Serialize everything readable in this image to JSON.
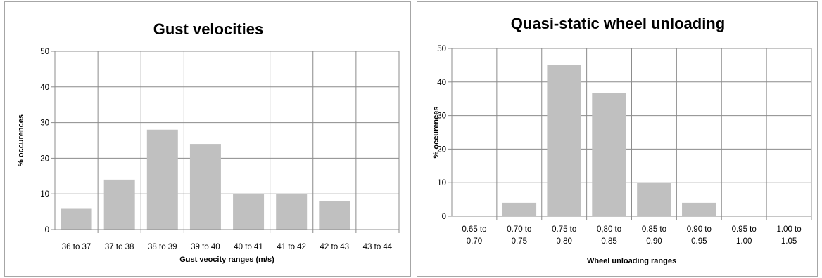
{
  "chart_data": [
    {
      "type": "bar",
      "title": "Gust velocities",
      "xlabel": "Gust veocity ranges (m/s)",
      "ylabel": "% occurences",
      "categories": [
        [
          "36 to 37"
        ],
        [
          "37 to 38"
        ],
        [
          "38 to 39"
        ],
        [
          "39 to 40"
        ],
        [
          "40 to 41"
        ],
        [
          "41 to 42"
        ],
        [
          "42 to 43"
        ],
        [
          "43 to 44"
        ]
      ],
      "values": [
        6,
        14,
        28,
        24,
        10,
        10,
        8,
        0
      ],
      "ylim": [
        0,
        50
      ],
      "yticks": [
        0,
        10,
        20,
        30,
        40,
        50
      ],
      "grid": true,
      "bar_color": "#c0c0c0"
    },
    {
      "type": "bar",
      "title": "Quasi-static wheel unloading",
      "xlabel": "Wheel unloading ranges",
      "ylabel": "% occurences",
      "categories": [
        [
          "0.65 to",
          "0.70"
        ],
        [
          "0.70 to",
          "0.75"
        ],
        [
          "0.75 to",
          "0.80"
        ],
        [
          "0,80 to",
          "0.85"
        ],
        [
          "0.85 to",
          "0.90"
        ],
        [
          "0.90 to",
          "0.95"
        ],
        [
          "0.95 to",
          "1.00"
        ],
        [
          "1.00 to",
          "1.05"
        ]
      ],
      "values": [
        0,
        4,
        45,
        36.7,
        10,
        4,
        0,
        0
      ],
      "ylim": [
        0,
        50
      ],
      "yticks": [
        0,
        10,
        20,
        30,
        40,
        50
      ],
      "grid": true,
      "bar_color": "#c0c0c0"
    }
  ]
}
